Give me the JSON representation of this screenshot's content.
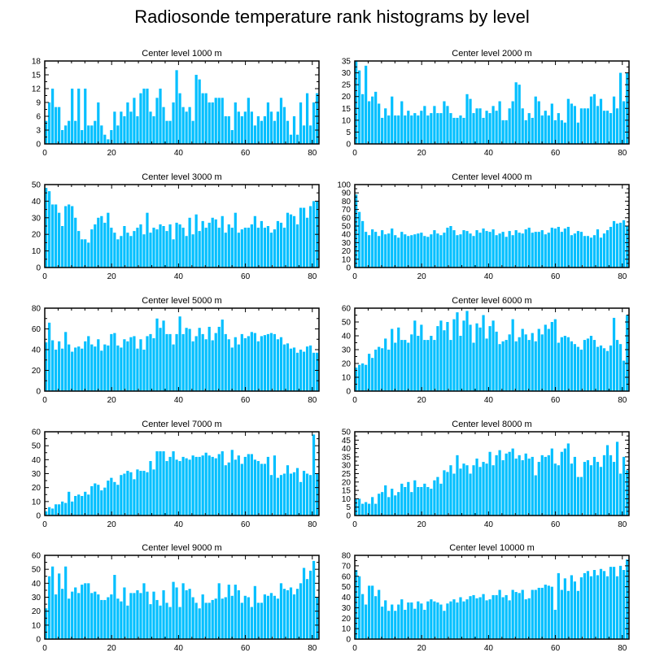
{
  "figure": {
    "title": "Radiosonde temperature rank histograms by level"
  },
  "colors": {
    "bar": "#00bfff",
    "axis": "#000000",
    "background": "#ffffff"
  },
  "chart_data": [
    {
      "type": "bar",
      "title": "Center level 1000 m",
      "xlim": [
        0,
        82
      ],
      "ylim": [
        0,
        18
      ],
      "xticks": [
        0,
        20,
        40,
        60,
        80
      ],
      "yticks": [
        0,
        3,
        6,
        9,
        12,
        15,
        18
      ],
      "values": [
        5,
        9,
        12,
        8,
        8,
        3,
        4,
        5,
        12,
        5,
        12,
        3,
        12,
        4,
        4,
        5,
        9,
        4,
        2,
        1,
        3,
        7,
        4,
        7,
        6,
        9,
        7,
        10,
        6,
        11,
        12,
        12,
        7,
        6,
        10,
        12,
        8,
        5,
        5,
        9,
        16,
        11,
        8,
        7,
        8,
        5,
        15,
        14,
        11,
        11,
        9,
        9,
        10,
        10,
        10,
        6,
        6,
        3,
        9,
        7,
        6,
        7,
        10,
        7,
        4,
        6,
        5,
        6,
        9,
        7,
        5,
        7,
        10,
        8,
        5,
        2,
        6,
        2,
        9,
        4,
        11,
        4,
        9,
        11
      ]
    },
    {
      "type": "bar",
      "title": "Center level 2000 m",
      "xlim": [
        0,
        82
      ],
      "ylim": [
        0,
        35
      ],
      "xticks": [
        0,
        20,
        40,
        60,
        80
      ],
      "yticks": [
        0,
        5,
        10,
        15,
        20,
        25,
        30,
        35
      ],
      "values": [
        35,
        31,
        21,
        33,
        18,
        20,
        22,
        17,
        11,
        15,
        12,
        20,
        12,
        12,
        18,
        12,
        14,
        12,
        13,
        12,
        14,
        16,
        12,
        13,
        16,
        13,
        13,
        18,
        16,
        13,
        11,
        11,
        12,
        11,
        21,
        19,
        13,
        15,
        15,
        11,
        14,
        13,
        16,
        14,
        18,
        10,
        10,
        15,
        18,
        26,
        25,
        15,
        10,
        13,
        11,
        20,
        18,
        12,
        14,
        12,
        17,
        10,
        13,
        10,
        9,
        19,
        17,
        16,
        9,
        15,
        15,
        15,
        20,
        21,
        16,
        19,
        14,
        14,
        13,
        20,
        15,
        30,
        18,
        30
      ]
    },
    {
      "type": "bar",
      "title": "Center level 3000 m",
      "xlim": [
        0,
        82
      ],
      "ylim": [
        0,
        50
      ],
      "xticks": [
        0,
        20,
        40,
        60,
        80
      ],
      "yticks": [
        0,
        10,
        20,
        30,
        40,
        50
      ],
      "values": [
        48,
        46,
        38,
        38,
        33,
        25,
        37,
        38,
        37,
        30,
        22,
        17,
        17,
        15,
        23,
        26,
        30,
        31,
        27,
        33,
        24,
        21,
        17,
        19,
        25,
        21,
        19,
        22,
        24,
        26,
        20,
        33,
        21,
        24,
        23,
        26,
        25,
        22,
        26,
        17,
        27,
        26,
        24,
        19,
        30,
        20,
        32,
        22,
        28,
        24,
        27,
        30,
        29,
        24,
        31,
        21,
        26,
        24,
        33,
        21,
        23,
        24,
        24,
        26,
        31,
        24,
        28,
        24,
        25,
        21,
        23,
        28,
        27,
        24,
        33,
        32,
        31,
        26,
        36,
        36,
        30,
        37,
        40,
        40
      ]
    },
    {
      "type": "bar",
      "title": "Center level 4000 m",
      "xlim": [
        0,
        82
      ],
      "ylim": [
        0,
        100
      ],
      "xticks": [
        0,
        20,
        40,
        60,
        80
      ],
      "yticks": [
        0,
        10,
        20,
        30,
        40,
        50,
        60,
        70,
        80,
        90,
        100
      ],
      "values": [
        88,
        67,
        56,
        43,
        39,
        46,
        43,
        38,
        45,
        40,
        41,
        47,
        39,
        36,
        43,
        40,
        38,
        39,
        40,
        41,
        42,
        38,
        37,
        40,
        45,
        41,
        39,
        42,
        48,
        50,
        45,
        39,
        40,
        45,
        44,
        41,
        38,
        45,
        42,
        47,
        44,
        43,
        46,
        39,
        41,
        43,
        37,
        44,
        39,
        45,
        42,
        41,
        46,
        48,
        42,
        43,
        43,
        45,
        40,
        42,
        48,
        47,
        49,
        43,
        47,
        49,
        39,
        41,
        44,
        43,
        38,
        38,
        36,
        39,
        46,
        36,
        41,
        45,
        49,
        56,
        53,
        54,
        57,
        50
      ]
    },
    {
      "type": "bar",
      "title": "Center level 5000 m",
      "xlim": [
        0,
        82
      ],
      "ylim": [
        0,
        80
      ],
      "xticks": [
        0,
        20,
        40,
        60,
        80
      ],
      "yticks": [
        0,
        20,
        40,
        60,
        80
      ],
      "values": [
        47,
        66,
        49,
        40,
        48,
        41,
        57,
        45,
        38,
        42,
        43,
        41,
        48,
        53,
        45,
        43,
        50,
        39,
        45,
        44,
        55,
        56,
        44,
        42,
        50,
        48,
        52,
        53,
        41,
        50,
        40,
        53,
        55,
        51,
        70,
        61,
        68,
        55,
        55,
        45,
        55,
        72,
        55,
        61,
        60,
        48,
        53,
        61,
        55,
        50,
        62,
        49,
        56,
        62,
        69,
        55,
        50,
        42,
        52,
        45,
        55,
        51,
        53,
        57,
        56,
        48,
        53,
        54,
        55,
        56,
        55,
        50,
        52,
        45,
        46,
        41,
        42,
        37,
        40,
        38,
        43,
        44,
        37,
        37
      ]
    },
    {
      "type": "bar",
      "title": "Center level 6000 m",
      "xlim": [
        0,
        82
      ],
      "ylim": [
        0,
        60
      ],
      "xticks": [
        0,
        20,
        40,
        60,
        80
      ],
      "yticks": [
        0,
        10,
        20,
        30,
        40,
        50,
        60
      ],
      "values": [
        17,
        19,
        20,
        19,
        27,
        24,
        30,
        32,
        31,
        38,
        30,
        45,
        35,
        46,
        37,
        37,
        35,
        41,
        51,
        40,
        48,
        37,
        37,
        40,
        37,
        47,
        51,
        44,
        50,
        37,
        52,
        57,
        40,
        51,
        58,
        48,
        35,
        49,
        46,
        55,
        38,
        47,
        51,
        43,
        34,
        36,
        37,
        41,
        52,
        36,
        39,
        45,
        41,
        37,
        42,
        36,
        45,
        41,
        48,
        45,
        50,
        52,
        35,
        39,
        40,
        39,
        36,
        34,
        32,
        30,
        37,
        38,
        40,
        37,
        32,
        33,
        31,
        29,
        33,
        53,
        37,
        34,
        22,
        55
      ]
    },
    {
      "type": "bar",
      "title": "Center level 7000 m",
      "xlim": [
        0,
        82
      ],
      "ylim": [
        0,
        60
      ],
      "xticks": [
        0,
        20,
        40,
        60,
        80
      ],
      "yticks": [
        0,
        10,
        20,
        30,
        40,
        50,
        60
      ],
      "values": [
        3,
        6,
        5,
        8,
        8,
        10,
        9,
        17,
        10,
        14,
        15,
        14,
        17,
        15,
        21,
        23,
        22,
        18,
        20,
        25,
        27,
        24,
        22,
        29,
        30,
        32,
        31,
        26,
        33,
        32,
        32,
        31,
        39,
        33,
        46,
        46,
        46,
        39,
        42,
        46,
        40,
        39,
        42,
        41,
        40,
        43,
        42,
        42,
        43,
        45,
        43,
        42,
        41,
        44,
        46,
        36,
        38,
        47,
        40,
        43,
        37,
        42,
        44,
        44,
        40,
        39,
        37,
        37,
        42,
        29,
        43,
        27,
        29,
        30,
        36,
        30,
        31,
        34,
        24,
        32,
        30,
        29,
        58,
        30
      ]
    },
    {
      "type": "bar",
      "title": "Center level 8000 m",
      "xlim": [
        0,
        82
      ],
      "ylim": [
        0,
        50
      ],
      "xticks": [
        0,
        20,
        40,
        60,
        80
      ],
      "yticks": [
        0,
        5,
        10,
        15,
        20,
        25,
        30,
        35,
        40,
        45,
        50
      ],
      "values": [
        10,
        10,
        7,
        8,
        7,
        11,
        7,
        13,
        14,
        18,
        11,
        16,
        12,
        14,
        19,
        17,
        20,
        14,
        21,
        17,
        17,
        19,
        17,
        16,
        21,
        23,
        19,
        27,
        26,
        30,
        25,
        36,
        28,
        31,
        30,
        25,
        30,
        34,
        29,
        32,
        31,
        38,
        30,
        36,
        39,
        33,
        37,
        38,
        40,
        34,
        36,
        33,
        37,
        34,
        35,
        24,
        32,
        36,
        35,
        36,
        40,
        31,
        30,
        38,
        40,
        43,
        31,
        35,
        23,
        23,
        32,
        33,
        30,
        35,
        32,
        29,
        36,
        42,
        36,
        32,
        44,
        25,
        35,
        27
      ]
    },
    {
      "type": "bar",
      "title": "Center level 9000 m",
      "xlim": [
        0,
        82
      ],
      "ylim": [
        0,
        60
      ],
      "xticks": [
        0,
        20,
        40,
        60,
        80
      ],
      "yticks": [
        0,
        10,
        20,
        30,
        40,
        50,
        60
      ],
      "values": [
        22,
        45,
        52,
        32,
        47,
        36,
        52,
        29,
        34,
        37,
        33,
        39,
        40,
        40,
        33,
        34,
        32,
        28,
        28,
        30,
        32,
        46,
        29,
        27,
        37,
        24,
        33,
        33,
        35,
        33,
        40,
        34,
        25,
        34,
        28,
        24,
        35,
        26,
        23,
        41,
        37,
        23,
        40,
        35,
        36,
        30,
        26,
        22,
        32,
        26,
        26,
        28,
        29,
        40,
        29,
        30,
        39,
        31,
        39,
        35,
        26,
        31,
        30,
        23,
        38,
        26,
        26,
        32,
        31,
        33,
        31,
        29,
        40,
        36,
        35,
        37,
        32,
        36,
        40,
        51,
        43,
        49,
        56,
        30
      ]
    },
    {
      "type": "bar",
      "title": "Center level 10000 m",
      "xlim": [
        0,
        82
      ],
      "ylim": [
        0,
        80
      ],
      "xticks": [
        0,
        20,
        40,
        60,
        80
      ],
      "yticks": [
        0,
        10,
        20,
        30,
        40,
        50,
        60,
        70,
        80
      ],
      "values": [
        66,
        60,
        43,
        33,
        51,
        51,
        41,
        47,
        31,
        37,
        27,
        33,
        27,
        33,
        38,
        28,
        35,
        35,
        29,
        36,
        34,
        28,
        36,
        38,
        36,
        35,
        33,
        27,
        34,
        36,
        38,
        35,
        40,
        36,
        38,
        41,
        42,
        39,
        40,
        43,
        37,
        38,
        42,
        42,
        47,
        40,
        42,
        37,
        47,
        45,
        44,
        47,
        38,
        39,
        47,
        47,
        49,
        49,
        52,
        51,
        50,
        28,
        63,
        47,
        58,
        46,
        61,
        55,
        46,
        59,
        63,
        65,
        60,
        66,
        61,
        67,
        65,
        60,
        69,
        69,
        60,
        70,
        66,
        76
      ]
    }
  ]
}
